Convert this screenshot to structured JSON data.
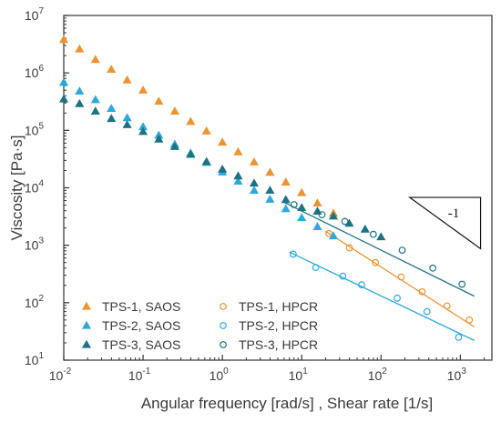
{
  "chart_data": {
    "type": "scatter",
    "x_scale": "log",
    "y_scale": "log",
    "xlabel": "Angular frequency [rad/s] , Shear rate [1/s]",
    "ylabel": "Viscosity [Pa·s]",
    "xlim": [
      0.01,
      2500
    ],
    "ylim": [
      10,
      10000000
    ],
    "x_ticks": [
      {
        "value": 0.01,
        "base": "10",
        "exp": "-2"
      },
      {
        "value": 0.1,
        "base": "10",
        "exp": "-1"
      },
      {
        "value": 1,
        "base": "10",
        "exp": "0"
      },
      {
        "value": 10,
        "base": "10",
        "exp": "1"
      },
      {
        "value": 100,
        "base": "10",
        "exp": "2"
      },
      {
        "value": 1000,
        "base": "10",
        "exp": "3"
      }
    ],
    "y_ticks": [
      {
        "value": 10,
        "base": "10",
        "exp": "1"
      },
      {
        "value": 100,
        "base": "10",
        "exp": "2"
      },
      {
        "value": 1000,
        "base": "10",
        "exp": "3"
      },
      {
        "value": 10000,
        "base": "10",
        "exp": "4"
      },
      {
        "value": 100000,
        "base": "10",
        "exp": "5"
      },
      {
        "value": 1000000,
        "base": "10",
        "exp": "6"
      },
      {
        "value": 10000000,
        "base": "10",
        "exp": "7"
      }
    ],
    "grid": false,
    "legend": "bottom-left",
    "slope_annotation": {
      "label": "-1",
      "x": [
        230,
        1800
      ],
      "y": [
        6800,
        870
      ]
    },
    "series": [
      {
        "name": "TPS-1, SAOS",
        "marker": "triangle",
        "filled": true,
        "color": "#F0922F",
        "points": [
          [
            0.01,
            3800000
          ],
          [
            0.0158,
            2600000
          ],
          [
            0.0251,
            1700000
          ],
          [
            0.0398,
            1150000
          ],
          [
            0.063,
            750000
          ],
          [
            0.1,
            500000
          ],
          [
            0.158,
            320000
          ],
          [
            0.251,
            215000
          ],
          [
            0.398,
            142000
          ],
          [
            0.63,
            97000
          ],
          [
            1.0,
            62000
          ],
          [
            1.58,
            42000
          ],
          [
            2.51,
            28000
          ],
          [
            3.98,
            18500
          ],
          [
            6.3,
            12500
          ],
          [
            10,
            8200
          ],
          [
            15.8,
            5400
          ],
          [
            25.1,
            3600
          ]
        ]
      },
      {
        "name": "TPS-2, SAOS",
        "marker": "triangle",
        "filled": true,
        "color": "#2BA9E0",
        "points": [
          [
            0.01,
            680000
          ],
          [
            0.0158,
            480000
          ],
          [
            0.0251,
            340000
          ],
          [
            0.0398,
            240000
          ],
          [
            0.063,
            165000
          ],
          [
            0.1,
            115000
          ],
          [
            0.158,
            82000
          ],
          [
            0.251,
            57000
          ],
          [
            0.398,
            40000
          ],
          [
            0.63,
            27500
          ],
          [
            1.0,
            18800
          ],
          [
            1.58,
            13000
          ],
          [
            2.51,
            9000
          ],
          [
            3.98,
            6300
          ],
          [
            6.3,
            4300
          ],
          [
            10,
            3000
          ],
          [
            15.8,
            2100
          ],
          [
            25.1,
            1450
          ]
        ]
      },
      {
        "name": "TPS-3, SAOS",
        "marker": "triangle",
        "filled": true,
        "color": "#1D7284",
        "points": [
          [
            0.01,
            350000
          ],
          [
            0.0158,
            290000
          ],
          [
            0.0251,
            215000
          ],
          [
            0.0398,
            160000
          ],
          [
            0.063,
            125000
          ],
          [
            0.1,
            95000
          ],
          [
            0.158,
            70000
          ],
          [
            0.251,
            52000
          ],
          [
            0.398,
            38000
          ],
          [
            0.63,
            28500
          ],
          [
            1.0,
            21000
          ],
          [
            1.58,
            16000
          ],
          [
            2.51,
            12000
          ],
          [
            3.98,
            9000
          ],
          [
            6.3,
            6200
          ],
          [
            10,
            4500
          ],
          [
            15.8,
            3900
          ],
          [
            25.1,
            3200
          ],
          [
            39.8,
            2400
          ],
          [
            63,
            1900
          ],
          [
            100,
            1400
          ]
        ]
      },
      {
        "name": "TPS-1, HPCR",
        "marker": "circle",
        "filled": false,
        "color": "#F0922F",
        "points": [
          [
            22,
            1600
          ],
          [
            40,
            900
          ],
          [
            85,
            500
          ],
          [
            180,
            280
          ],
          [
            330,
            155
          ],
          [
            680,
            88
          ],
          [
            1300,
            50
          ]
        ],
        "fit": {
          "x": [
            20,
            1500
          ],
          "y": [
            1750,
            38
          ]
        }
      },
      {
        "name": "TPS-2, HPCR",
        "marker": "circle",
        "filled": false,
        "color": "#2BA9E0",
        "points": [
          [
            7.8,
            700
          ],
          [
            15,
            410
          ],
          [
            33,
            290
          ],
          [
            57,
            205
          ],
          [
            160,
            120
          ],
          [
            380,
            70
          ],
          [
            950,
            25
          ]
        ],
        "fit": {
          "x": [
            7,
            1500
          ],
          "y": [
            760,
            22
          ]
        }
      },
      {
        "name": "TPS-3, HPCR",
        "marker": "circle",
        "filled": false,
        "color": "#1D7284",
        "points": [
          [
            8,
            5100
          ],
          [
            18,
            3400
          ],
          [
            35,
            2600
          ],
          [
            80,
            1550
          ],
          [
            185,
            820
          ],
          [
            450,
            400
          ],
          [
            1050,
            210
          ]
        ],
        "fit": {
          "x": [
            6,
            1500
          ],
          "y": [
            5600,
            130
          ]
        }
      }
    ]
  }
}
